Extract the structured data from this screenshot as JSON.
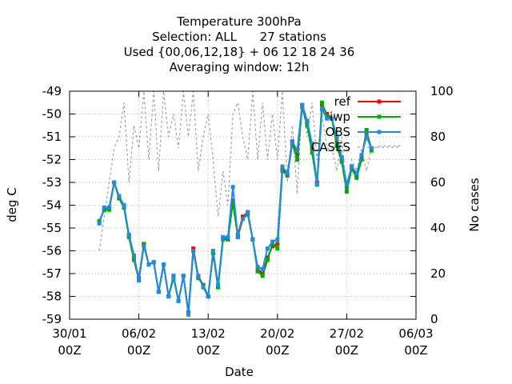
{
  "chart_data": {
    "type": "line",
    "title_lines": [
      "Temperature 300hPa",
      "Selection: ALL      27 stations",
      "Used {00,06,12,18} + 06 12 18 24 36",
      "Averaging window: 12h"
    ],
    "xlabel": "Date",
    "ylabel": "deg C",
    "y2label": "No cases",
    "x_ticks": [
      {
        "day": 0,
        "line1": "30/01",
        "line2": "00Z"
      },
      {
        "day": 7,
        "line1": "06/02",
        "line2": "00Z"
      },
      {
        "day": 14,
        "line1": "13/02",
        "line2": "00Z"
      },
      {
        "day": 21,
        "line1": "20/02",
        "line2": "00Z"
      },
      {
        "day": 28,
        "line1": "27/02",
        "line2": "00Z"
      },
      {
        "day": 35,
        "line1": "06/03",
        "line2": "00Z"
      }
    ],
    "xlim": [
      0,
      35
    ],
    "ylim": [
      -59,
      -49
    ],
    "y_ticks": [
      -49,
      -50,
      -51,
      -52,
      -53,
      -54,
      -55,
      -56,
      -57,
      -58,
      -59
    ],
    "y2lim": [
      0,
      100
    ],
    "y2_ticks": [
      0,
      20,
      40,
      60,
      80,
      100
    ],
    "grid": true,
    "legend_position": "top-right",
    "series": [
      {
        "name": "ref",
        "color": "#ff0000",
        "axis": "y",
        "points": [
          [
            3.0,
            -54.7
          ],
          [
            3.5,
            -54.2
          ],
          [
            4.0,
            -54.1
          ],
          [
            4.5,
            -53.0
          ],
          [
            5.0,
            -53.7
          ],
          [
            5.5,
            -54.1
          ],
          [
            6.0,
            -55.3
          ],
          [
            6.5,
            -56.3
          ],
          [
            7.0,
            -57.2
          ],
          [
            7.5,
            -55.7
          ],
          [
            8.0,
            -56.6
          ],
          [
            8.5,
            -56.5
          ],
          [
            9.0,
            -57.8
          ],
          [
            9.5,
            -56.6
          ],
          [
            10.0,
            -58.0
          ],
          [
            10.5,
            -57.1
          ],
          [
            11.0,
            -58.2
          ],
          [
            11.5,
            -57.1
          ],
          [
            12.0,
            -58.7
          ],
          [
            12.5,
            -55.9
          ],
          [
            13.0,
            -57.1
          ],
          [
            13.5,
            -57.5
          ],
          [
            14.0,
            -58.0
          ],
          [
            14.5,
            -56.1
          ],
          [
            15.0,
            -57.6
          ],
          [
            15.5,
            -55.4
          ],
          [
            16.0,
            -55.5
          ],
          [
            16.5,
            -53.8
          ],
          [
            17.0,
            -55.3
          ],
          [
            17.5,
            -54.5
          ],
          [
            18.0,
            -54.3
          ],
          [
            18.5,
            -55.5
          ],
          [
            19.0,
            -56.8
          ],
          [
            19.5,
            -57.0
          ],
          [
            20.0,
            -56.3
          ],
          [
            20.5,
            -55.8
          ],
          [
            21.0,
            -55.7
          ],
          [
            21.5,
            -52.4
          ],
          [
            22.0,
            -52.7
          ],
          [
            22.5,
            -51.2
          ],
          [
            23.0,
            -51.8
          ],
          [
            23.5,
            -49.6
          ],
          [
            24.0,
            -50.3
          ],
          [
            24.5,
            -51.5
          ],
          [
            25.0,
            -53.0
          ],
          [
            25.5,
            -49.6
          ],
          [
            26.0,
            -50.0
          ],
          [
            26.5,
            -50.2
          ],
          [
            27.0,
            -51.2
          ],
          [
            27.5,
            -52.0
          ],
          [
            28.0,
            -53.2
          ],
          [
            28.5,
            -52.3
          ],
          [
            29.0,
            -52.7
          ],
          [
            29.5,
            -51.9
          ],
          [
            30.0,
            -50.8
          ],
          [
            30.5,
            -51.5
          ]
        ]
      },
      {
        "name": "iwp",
        "color": "#00aa00",
        "axis": "y",
        "points": [
          [
            3.0,
            -54.7
          ],
          [
            3.5,
            -54.2
          ],
          [
            4.0,
            -54.2
          ],
          [
            4.5,
            -53.0
          ],
          [
            5.0,
            -53.7
          ],
          [
            5.5,
            -54.1
          ],
          [
            6.0,
            -55.4
          ],
          [
            6.5,
            -56.4
          ],
          [
            7.0,
            -57.3
          ],
          [
            7.5,
            -55.7
          ],
          [
            8.0,
            -56.6
          ],
          [
            8.5,
            -56.5
          ],
          [
            9.0,
            -57.8
          ],
          [
            9.5,
            -56.6
          ],
          [
            10.0,
            -58.0
          ],
          [
            10.5,
            -57.2
          ],
          [
            11.0,
            -58.2
          ],
          [
            11.5,
            -57.1
          ],
          [
            12.0,
            -58.7
          ],
          [
            12.5,
            -56.0
          ],
          [
            13.0,
            -57.2
          ],
          [
            13.5,
            -57.5
          ],
          [
            14.0,
            -58.0
          ],
          [
            14.5,
            -56.1
          ],
          [
            15.0,
            -57.6
          ],
          [
            15.5,
            -55.5
          ],
          [
            16.0,
            -55.5
          ],
          [
            16.5,
            -53.9
          ],
          [
            17.0,
            -55.4
          ],
          [
            17.5,
            -54.6
          ],
          [
            18.0,
            -54.4
          ],
          [
            18.5,
            -55.5
          ],
          [
            19.0,
            -56.9
          ],
          [
            19.5,
            -57.1
          ],
          [
            20.0,
            -56.4
          ],
          [
            20.5,
            -55.7
          ],
          [
            21.0,
            -55.9
          ],
          [
            21.5,
            -52.5
          ],
          [
            22.0,
            -52.7
          ],
          [
            22.5,
            -51.3
          ],
          [
            23.0,
            -52.0
          ],
          [
            23.5,
            -49.7
          ],
          [
            24.0,
            -50.5
          ],
          [
            24.5,
            -51.7
          ],
          [
            25.0,
            -53.1
          ],
          [
            25.5,
            -49.5
          ],
          [
            26.0,
            -50.1
          ],
          [
            26.5,
            -50.2
          ],
          [
            27.0,
            -51.4
          ],
          [
            27.5,
            -52.1
          ],
          [
            28.0,
            -53.4
          ],
          [
            28.5,
            -52.4
          ],
          [
            29.0,
            -52.8
          ],
          [
            29.5,
            -52.0
          ],
          [
            30.0,
            -50.7
          ],
          [
            30.5,
            -51.6
          ]
        ]
      },
      {
        "name": "OBS",
        "color": "#1e8ce6",
        "axis": "y",
        "points": [
          [
            3.0,
            -54.8
          ],
          [
            3.5,
            -54.1
          ],
          [
            4.0,
            -54.1
          ],
          [
            4.5,
            -53.0
          ],
          [
            5.0,
            -53.6
          ],
          [
            5.5,
            -54.0
          ],
          [
            6.0,
            -55.3
          ],
          [
            6.5,
            -56.2
          ],
          [
            7.0,
            -57.3
          ],
          [
            7.5,
            -55.8
          ],
          [
            8.0,
            -56.6
          ],
          [
            8.5,
            -56.5
          ],
          [
            9.0,
            -57.8
          ],
          [
            9.5,
            -56.6
          ],
          [
            10.0,
            -58.0
          ],
          [
            10.5,
            -57.1
          ],
          [
            11.0,
            -58.2
          ],
          [
            11.5,
            -57.1
          ],
          [
            12.0,
            -58.8
          ],
          [
            12.5,
            -56.0
          ],
          [
            13.0,
            -57.1
          ],
          [
            13.5,
            -57.6
          ],
          [
            14.0,
            -58.0
          ],
          [
            14.5,
            -56.0
          ],
          [
            15.0,
            -57.5
          ],
          [
            15.5,
            -55.4
          ],
          [
            16.0,
            -55.4
          ],
          [
            16.5,
            -53.2
          ],
          [
            17.0,
            -55.4
          ],
          [
            17.5,
            -54.6
          ],
          [
            18.0,
            -54.3
          ],
          [
            18.5,
            -55.5
          ],
          [
            19.0,
            -56.7
          ],
          [
            19.5,
            -56.8
          ],
          [
            20.0,
            -55.9
          ],
          [
            20.5,
            -55.6
          ],
          [
            21.0,
            -55.5
          ],
          [
            21.5,
            -52.3
          ],
          [
            22.0,
            -52.6
          ],
          [
            22.5,
            -51.2
          ],
          [
            23.0,
            -51.6
          ],
          [
            23.5,
            -49.6
          ],
          [
            24.0,
            -50.3
          ],
          [
            24.5,
            -51.3
          ],
          [
            25.0,
            -53.1
          ],
          [
            25.5,
            -49.8
          ],
          [
            26.0,
            -50.2
          ],
          [
            26.5,
            -50.2
          ],
          [
            27.0,
            -51.0
          ],
          [
            27.5,
            -51.9
          ],
          [
            28.0,
            -53.1
          ],
          [
            28.5,
            -52.3
          ],
          [
            29.0,
            -52.6
          ],
          [
            29.5,
            -51.8
          ],
          [
            30.0,
            -51.0
          ],
          [
            30.5,
            -51.5
          ]
        ]
      },
      {
        "name": "CASES",
        "color": "#a0a0a0",
        "axis": "y2",
        "points": [
          [
            3.0,
            30
          ],
          [
            3.5,
            45
          ],
          [
            4.0,
            60
          ],
          [
            4.5,
            75
          ],
          [
            5.0,
            80
          ],
          [
            5.5,
            95
          ],
          [
            6.0,
            60
          ],
          [
            6.5,
            85
          ],
          [
            7.0,
            75
          ],
          [
            7.5,
            100
          ],
          [
            8.0,
            70
          ],
          [
            8.5,
            100
          ],
          [
            9.0,
            65
          ],
          [
            9.5,
            100
          ],
          [
            10.0,
            80
          ],
          [
            10.5,
            90
          ],
          [
            11.0,
            75
          ],
          [
            11.5,
            100
          ],
          [
            12.0,
            80
          ],
          [
            12.5,
            100
          ],
          [
            13.0,
            65
          ],
          [
            13.5,
            80
          ],
          [
            14.0,
            90
          ],
          [
            14.5,
            70
          ],
          [
            15.0,
            45
          ],
          [
            15.5,
            65
          ],
          [
            16.0,
            50
          ],
          [
            16.5,
            90
          ],
          [
            17.0,
            95
          ],
          [
            17.5,
            80
          ],
          [
            18.0,
            70
          ],
          [
            18.5,
            100
          ],
          [
            19.0,
            70
          ],
          [
            19.5,
            95
          ],
          [
            20.0,
            70
          ],
          [
            20.5,
            90
          ],
          [
            21.0,
            70
          ],
          [
            21.5,
            100
          ],
          [
            22.0,
            60
          ],
          [
            22.5,
            85
          ],
          [
            23.0,
            55
          ],
          [
            23.5,
            95
          ],
          [
            24.0,
            80
          ],
          [
            24.5,
            95
          ],
          [
            25.0,
            70
          ],
          [
            25.5,
            90
          ],
          [
            26.0,
            75
          ],
          [
            26.5,
            75
          ],
          [
            27.0,
            65
          ],
          [
            27.5,
            80
          ],
          [
            28.0,
            55
          ],
          [
            28.5,
            70
          ],
          [
            29.0,
            65
          ],
          [
            29.5,
            75
          ],
          [
            30.0,
            65
          ],
          [
            30.5,
            75
          ],
          [
            31.5,
            76
          ],
          [
            33.5,
            76
          ]
        ]
      }
    ]
  }
}
